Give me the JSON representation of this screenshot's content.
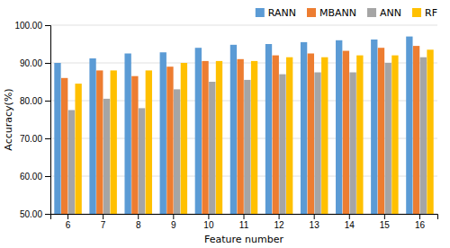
{
  "chart_data": {
    "type": "bar",
    "x_label": "Feature number",
    "y_label": "Accuracy(%)",
    "categories": [
      "6",
      "7",
      "8",
      "9",
      "10",
      "11",
      "12",
      "13",
      "14",
      "15",
      "16"
    ],
    "series": [
      {
        "name": "RANN",
        "color": "#5B9BD5",
        "values": [
          90.0,
          91.2,
          92.5,
          92.8,
          94.0,
          94.8,
          95.0,
          95.5,
          96.0,
          96.2,
          97.0
        ]
      },
      {
        "name": "MBANN",
        "color": "#ED7D31",
        "values": [
          86.0,
          88.0,
          86.5,
          89.0,
          90.5,
          91.0,
          92.0,
          92.5,
          93.2,
          94.0,
          94.5
        ]
      },
      {
        "name": "ANN",
        "color": "#A5A5A5",
        "values": [
          77.5,
          80.5,
          78.0,
          83.0,
          85.0,
          85.5,
          87.0,
          87.5,
          87.5,
          90.0,
          91.5
        ]
      },
      {
        "name": "RF",
        "color": "#FFC000",
        "values": [
          84.5,
          88.0,
          88.0,
          90.0,
          90.5,
          90.5,
          91.5,
          91.5,
          92.0,
          92.0,
          93.5
        ]
      }
    ],
    "ylim": [
      50.0,
      100.0
    ],
    "yticks": [
      {
        "value": 50.0,
        "label": "50.00"
      },
      {
        "value": 60.0,
        "label": "60.00"
      },
      {
        "value": 70.0,
        "label": "70.00"
      },
      {
        "value": 80.0,
        "label": "80.00"
      },
      {
        "value": 90.0,
        "label": "90.00"
      },
      {
        "value": 100.0,
        "label": "100.00"
      }
    ],
    "grid": true,
    "legend": "upper right"
  }
}
